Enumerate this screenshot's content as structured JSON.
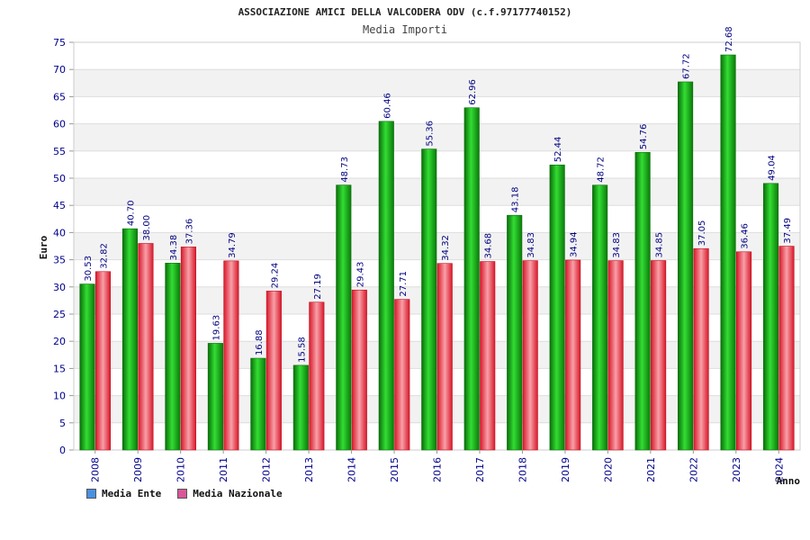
{
  "chart_data": {
    "type": "bar",
    "title": "ASSOCIAZIONE AMICI DELLA VALCODERA ODV (c.f.97177740152)",
    "subtitle": "Media Importi",
    "xlabel": "Anno",
    "ylabel": "Euro",
    "ylim": [
      0,
      75
    ],
    "yticks": [
      0,
      5,
      10,
      15,
      20,
      25,
      30,
      35,
      40,
      45,
      50,
      55,
      60,
      65,
      70,
      75
    ],
    "grid": true,
    "legend_position": "bottom-left",
    "categories": [
      "2008",
      "2009",
      "2010",
      "2011",
      "2012",
      "2013",
      "2014",
      "2015",
      "2016",
      "2017",
      "2018",
      "2019",
      "2020",
      "2021",
      "2022",
      "2023",
      "2024"
    ],
    "series": [
      {
        "name": "Media Ente",
        "color": "#22aa22",
        "values": [
          30.53,
          40.7,
          34.38,
          19.63,
          16.88,
          15.58,
          48.73,
          60.46,
          55.36,
          62.96,
          43.18,
          52.44,
          48.72,
          54.76,
          67.72,
          72.68,
          49.04
        ],
        "labels": [
          "30.53",
          "40.70",
          "34.38",
          "19.63",
          "16.88",
          "15.58",
          "48.73",
          "60.46",
          "55.36",
          "62.96",
          "43.18",
          "52.44",
          "48.72",
          "54.76",
          "67.72",
          "72.68",
          "49.04"
        ]
      },
      {
        "name": "Media Nazionale",
        "color": "#e8404a",
        "values": [
          32.82,
          38.0,
          37.36,
          34.79,
          29.24,
          27.19,
          29.43,
          27.71,
          34.32,
          34.68,
          34.83,
          34.94,
          34.83,
          34.85,
          37.05,
          36.46,
          37.49
        ],
        "labels": [
          "32.82",
          "38.00",
          "37.36",
          "34.79",
          "29.24",
          "27.19",
          "29.43",
          "27.71",
          "34.32",
          "34.68",
          "34.83",
          "34.94",
          "34.83",
          "34.85",
          "37.05",
          "36.46",
          "37.49"
        ]
      }
    ],
    "legend": [
      {
        "name": "Media Ente",
        "swatch_color": "#4a90e2"
      },
      {
        "name": "Media Nazionale",
        "swatch_color": "#d9579a"
      }
    ]
  }
}
